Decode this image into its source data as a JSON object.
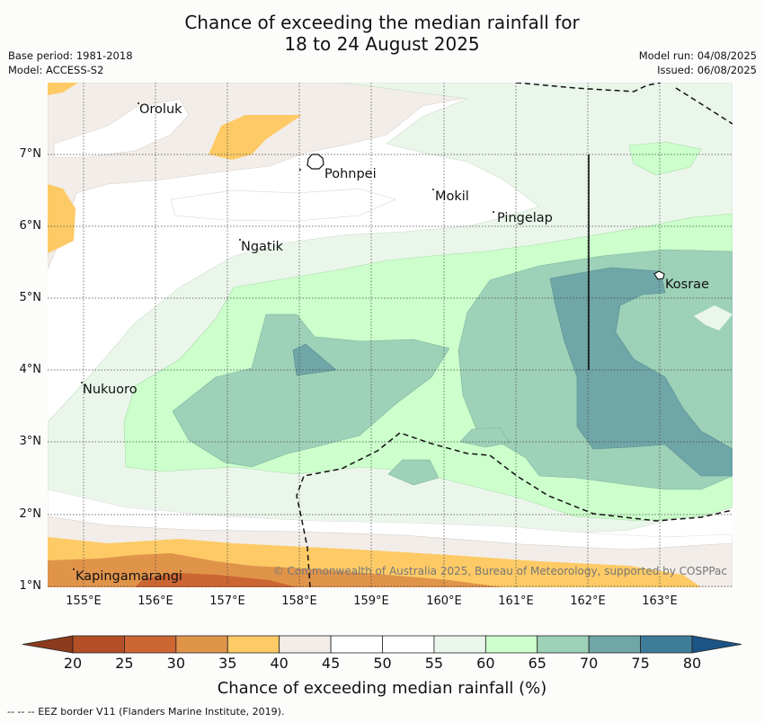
{
  "title_line1": "Chance of exceeding the median rainfall for",
  "title_line2": "18 to 24 August 2025",
  "left_info": [
    "Base period: 1981-2018",
    "Model: ACCESS-S2"
  ],
  "right_info": [
    "Model run: 04/08/2025",
    "Issued: 06/08/2025"
  ],
  "x_ticks": [
    "155°E",
    "156°E",
    "157°E",
    "158°E",
    "159°E",
    "160°E",
    "161°E",
    "162°E",
    "163°E"
  ],
  "y_ticks": [
    "7°N",
    "6°N",
    "5°N",
    "4°N",
    "3°N",
    "2°N",
    "1°N"
  ],
  "places": [
    "Oroluk",
    "Pohnpei",
    "Mokil",
    "Pingelap",
    "Ngatik",
    "Kosrae",
    "Nukuoro",
    "Kapingamarangi"
  ],
  "copyright": "© Commonwealth of Australia 2025, Bureau of Meteorology, supported by COSPPac",
  "colorbar": {
    "labels": [
      "20",
      "25",
      "30",
      "35",
      "40",
      "45",
      "50",
      "55",
      "60",
      "65",
      "70",
      "75",
      "80"
    ],
    "colors": [
      "#b34e26",
      "#cc6633",
      "#e0944a",
      "#fdca66",
      "#f2ede8",
      "#ffffff",
      "#ffffff",
      "#ebf6eb",
      "#ccffcc",
      "#9dd1b8",
      "#6fa6a8",
      "#3f7c9a"
    ],
    "under_color": "#8b3a1c",
    "over_color": "#1c5486",
    "title": "Chance of exceeding median rainfall (%)"
  },
  "footnote": "--  --  -- EEZ border V11 (Flanders Marine Institute, 2019)."
}
